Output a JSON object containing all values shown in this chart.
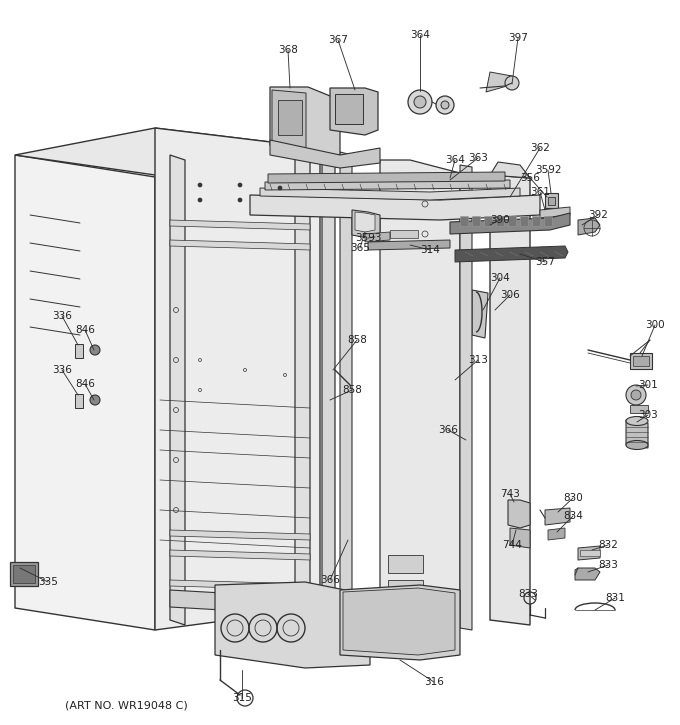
{
  "art_no": "(ART NO. WR19048 C)",
  "bg": "#ffffff",
  "lc": "#333333",
  "tc": "#222222",
  "fig_w": 6.8,
  "fig_h": 7.25,
  "dpi": 100
}
